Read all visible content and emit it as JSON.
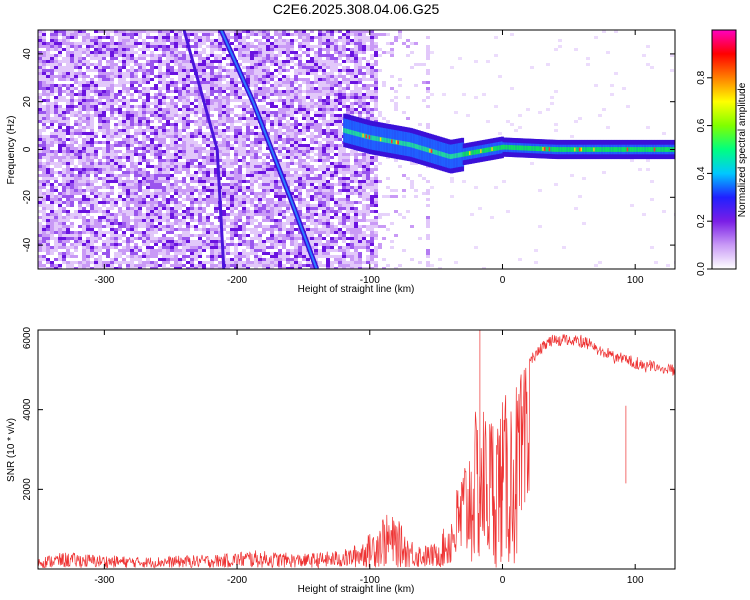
{
  "title": "C2E6.2025.308.04.06.G25",
  "chart_data": [
    {
      "type": "heatmap",
      "xlabel": "Height of straight line (km)",
      "ylabel": "Frequency (Hz)",
      "xlim": [
        -350,
        130
      ],
      "ylim": [
        -50,
        50
      ],
      "xticks": [
        -300,
        -200,
        -100,
        0,
        100
      ],
      "yticks": [
        -40,
        -20,
        0,
        20,
        40
      ],
      "colorbar": {
        "label": "Normalized spectral amplitude",
        "range": [
          0.0,
          1.0
        ],
        "ticks": [
          "0.0",
          "0.2",
          "0.4",
          "0.6",
          "0.8"
        ],
        "tick_values": [
          0.0,
          0.2,
          0.4,
          0.6,
          0.8
        ],
        "colors": [
          "#ffffff",
          "#c99af6",
          "#7a1ee6",
          "#2020ff",
          "#00c8ff",
          "#00ff80",
          "#80ff00",
          "#ffff00",
          "#ff8000",
          "#ff0000",
          "#ff00c0"
        ]
      },
      "features": {
        "noise_region_x": [
          -350,
          -95
        ],
        "streak_1": [
          [
            -212,
            50
          ],
          [
            -188,
            20
          ],
          [
            -160,
            -20
          ],
          [
            -140,
            -50
          ]
        ],
        "streak_2": [
          [
            -240,
            50
          ],
          [
            -215,
            0
          ],
          [
            -210,
            -50
          ]
        ],
        "signal_band": [
          [
            -120,
            8
          ],
          [
            -100,
            5
          ],
          [
            -70,
            2
          ],
          [
            -40,
            -3
          ],
          [
            0,
            1
          ],
          [
            40,
            0
          ],
          [
            130,
            0
          ]
        ]
      }
    },
    {
      "type": "line",
      "xlabel": "Height of straight line (km)",
      "ylabel": "SNR (10 * v/v)",
      "xlim": [
        -350,
        130
      ],
      "ylim": [
        0,
        6000
      ],
      "xticks": [
        -300,
        -200,
        -100,
        0,
        100
      ],
      "yticks": [
        2000,
        4000,
        6000
      ],
      "color": "#ee3333",
      "envelope": [
        [
          -350,
          300
        ],
        [
          -330,
          420
        ],
        [
          -300,
          350
        ],
        [
          -270,
          300
        ],
        [
          -240,
          340
        ],
        [
          -210,
          380
        ],
        [
          -190,
          480
        ],
        [
          -170,
          430
        ],
        [
          -150,
          380
        ],
        [
          -130,
          450
        ],
        [
          -115,
          520
        ],
        [
          -100,
          900
        ],
        [
          -90,
          1400
        ],
        [
          -80,
          1300
        ],
        [
          -70,
          800
        ],
        [
          -60,
          600
        ],
        [
          -50,
          650
        ],
        [
          -40,
          1300
        ],
        [
          -30,
          2700
        ],
        [
          -20,
          4000
        ],
        [
          -15,
          4200
        ],
        [
          -10,
          4000
        ],
        [
          0,
          4300
        ],
        [
          10,
          4700
        ],
        [
          20,
          5300
        ],
        [
          30,
          5700
        ],
        [
          40,
          5900
        ],
        [
          60,
          5850
        ],
        [
          80,
          5500
        ],
        [
          100,
          5300
        ],
        [
          130,
          5100
        ]
      ],
      "spikes": [
        [
          -17,
          6000
        ],
        [
          -12,
          1200
        ],
        [
          0,
          2500
        ],
        [
          10,
          1500
        ],
        [
          93,
          4100
        ]
      ]
    }
  ]
}
